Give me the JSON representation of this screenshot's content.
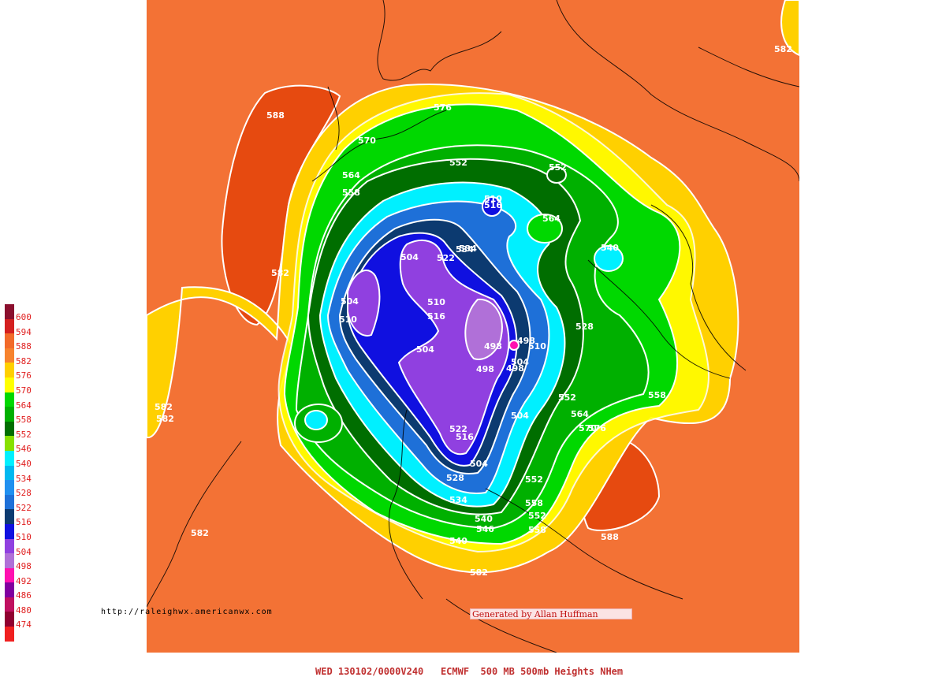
{
  "legend": {
    "levels": [
      {
        "value": "600",
        "color": "#8b0f2e"
      },
      {
        "value": "594",
        "color": "#d42020"
      },
      {
        "value": "588",
        "color": "#f26a2a"
      },
      {
        "value": "582",
        "color": "#f7832e"
      },
      {
        "value": "576",
        "color": "#ffd000"
      },
      {
        "value": "570",
        "color": "#ffff00"
      },
      {
        "value": "564",
        "color": "#00d800"
      },
      {
        "value": "558",
        "color": "#00b000"
      },
      {
        "value": "552",
        "color": "#006e00"
      },
      {
        "value": "546",
        "color": "#88e000"
      },
      {
        "value": "540",
        "color": "#00f0ff"
      },
      {
        "value": "534",
        "color": "#00b8f0"
      },
      {
        "value": "528",
        "color": "#2090f0"
      },
      {
        "value": "522",
        "color": "#1e70d8"
      },
      {
        "value": "516",
        "color": "#0c3a70"
      },
      {
        "value": "510",
        "color": "#1010e0"
      },
      {
        "value": "504",
        "color": "#9040e0"
      },
      {
        "value": "498",
        "color": "#b070d8"
      },
      {
        "value": "492",
        "color": "#ff10b0"
      },
      {
        "value": "486",
        "color": "#8000a0"
      },
      {
        "value": "480",
        "color": "#c01060"
      },
      {
        "value": "474",
        "color": "#900030"
      }
    ],
    "bottom_swatch_color": "#f02020"
  },
  "map": {
    "contour_labels": [
      {
        "text": "588"
      },
      {
        "text": "582"
      },
      {
        "text": "582"
      },
      {
        "text": "582"
      },
      {
        "text": "582"
      },
      {
        "text": "582"
      },
      {
        "text": "588"
      },
      {
        "text": "582"
      },
      {
        "text": "570"
      },
      {
        "text": "576"
      },
      {
        "text": "564"
      },
      {
        "text": "558"
      },
      {
        "text": "552"
      },
      {
        "text": "552"
      },
      {
        "text": "564"
      },
      {
        "text": "510"
      },
      {
        "text": "516"
      },
      {
        "text": "504"
      },
      {
        "text": "522"
      },
      {
        "text": "534"
      },
      {
        "text": "504"
      },
      {
        "text": "510"
      },
      {
        "text": "510"
      },
      {
        "text": "516"
      },
      {
        "text": "504"
      },
      {
        "text": "498"
      },
      {
        "text": "498"
      },
      {
        "text": "504"
      },
      {
        "text": "498"
      },
      {
        "text": "498"
      },
      {
        "text": "510"
      },
      {
        "text": "528"
      },
      {
        "text": "504"
      },
      {
        "text": "522"
      },
      {
        "text": "516"
      },
      {
        "text": "504"
      },
      {
        "text": "528"
      },
      {
        "text": "534"
      },
      {
        "text": "540"
      },
      {
        "text": "546"
      },
      {
        "text": "540"
      },
      {
        "text": "552"
      },
      {
        "text": "558"
      },
      {
        "text": "552"
      },
      {
        "text": "558"
      },
      {
        "text": "558"
      },
      {
        "text": "552"
      },
      {
        "text": "564"
      },
      {
        "text": "570"
      },
      {
        "text": "576"
      },
      {
        "text": "534"
      },
      {
        "text": "540"
      }
    ]
  },
  "url_text": "http://raleighwx.americanwx.com",
  "credit_text": "Generated by Allan Huffman",
  "footer_text": "WED 130102/0000V240   ECMWF  500 MB 500mb Heights NHem"
}
